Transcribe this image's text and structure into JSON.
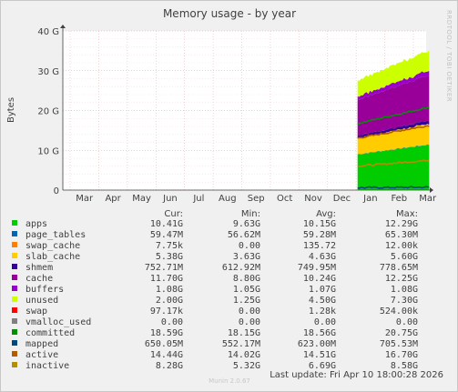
{
  "title": "Memory usage - by year",
  "ylabel": "Bytes",
  "side_label": "RRDTOOL / TOBI OETIKER",
  "footer_brand": "Munin 2.0.67",
  "last_update": "Last update: Fri Apr 10 18:00:28 2026",
  "headers": {
    "cur": "Cur:",
    "min": "Min:",
    "avg": "Avg:",
    "max": "Max:"
  },
  "chart_data": {
    "type": "area",
    "title": "Memory usage - by year",
    "ylabel": "Bytes",
    "ylim": [
      0,
      40
    ],
    "yticks": [
      "0",
      "10 G",
      "20 G",
      "30 G",
      "40 G"
    ],
    "xticks": [
      "Mar",
      "Apr",
      "May",
      "Jun",
      "Jul",
      "Aug",
      "Sep",
      "Oct",
      "Nov",
      "Dec",
      "Jan",
      "Feb",
      "Mar"
    ],
    "data_start_month_index": 10.05,
    "data_end_month_index": 12.55,
    "series": [
      {
        "name": "apps",
        "color": "#00cc00",
        "cur": "10.41G",
        "min": "9.63G",
        "avg": "10.15G",
        "max": "12.29G",
        "band_gb": 10.2
      },
      {
        "name": "page_tables",
        "color": "#0066b3",
        "cur": "59.47M",
        "min": "56.62M",
        "avg": "59.28M",
        "max": "65.30M",
        "band_gb": 0.06
      },
      {
        "name": "swap_cache",
        "color": "#ff8000",
        "cur": "7.75k",
        "min": "0.00",
        "avg": "135.72",
        "max": "12.00k",
        "band_gb": 0.0
      },
      {
        "name": "slab_cache",
        "color": "#ffcc00",
        "cur": "5.38G",
        "min": "3.63G",
        "avg": "4.63G",
        "max": "5.60G",
        "band_gb": 4.6
      },
      {
        "name": "shmem",
        "color": "#330099",
        "cur": "752.71M",
        "min": "612.92M",
        "avg": "749.95M",
        "max": "778.65M",
        "band_gb": 0.75
      },
      {
        "name": "cache",
        "color": "#990099",
        "cur": "11.70G",
        "min": "8.80G",
        "avg": "10.24G",
        "max": "12.25G",
        "band_gb": 10.2
      },
      {
        "name": "buffers",
        "color": "#9900cc",
        "cur": "1.08G",
        "min": "1.05G",
        "avg": "1.07G",
        "max": "1.08G",
        "band_gb": 1.07
      },
      {
        "name": "unused",
        "color": "#ccff00",
        "cur": "2.00G",
        "min": "1.25G",
        "avg": "4.50G",
        "max": "7.30G",
        "band_gb": 4.5
      },
      {
        "name": "swap",
        "color": "#ff0000",
        "cur": "97.17k",
        "min": "0.00",
        "avg": "1.28k",
        "max": "524.00k",
        "band_gb": 0.0
      },
      {
        "name": "vmalloc_used",
        "color": "#808080",
        "cur": "0.00",
        "min": "0.00",
        "avg": "0.00",
        "max": "0.00",
        "band_gb": 0.0
      },
      {
        "name": "committed",
        "color": "#008f00",
        "cur": "18.59G",
        "min": "18.15G",
        "avg": "18.56G",
        "max": "20.75G",
        "line_gb": 18.6
      },
      {
        "name": "mapped",
        "color": "#00487d",
        "cur": "650.05M",
        "min": "552.17M",
        "avg": "623.00M",
        "max": "705.53M",
        "line_gb": 0.65
      },
      {
        "name": "active",
        "color": "#b35a00",
        "cur": "14.44G",
        "min": "14.02G",
        "avg": "14.51G",
        "max": "16.70G",
        "line_gb": 14.5
      },
      {
        "name": "inactive",
        "color": "#b38f00",
        "cur": "8.28G",
        "min": "5.32G",
        "avg": "6.69G",
        "max": "8.58G",
        "line_gb": 6.7
      }
    ]
  }
}
